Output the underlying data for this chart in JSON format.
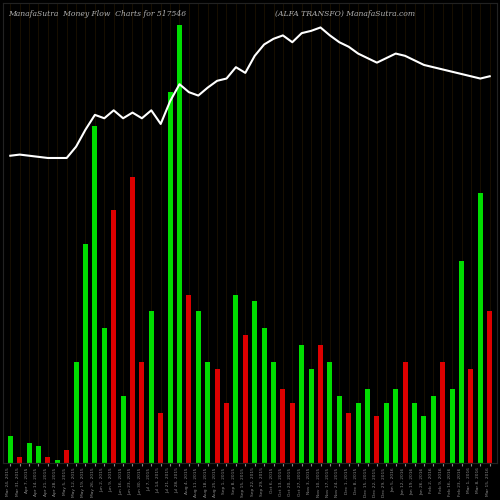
{
  "title_left": "ManafaSutra  Money Flow  Charts for 517546",
  "title_right": "(ALFA TRANSFO) ManafaSutra.com",
  "background_color": "#000000",
  "bar_colors_pattern": [
    "green",
    "red",
    "green",
    "green",
    "red",
    "green",
    "red",
    "green",
    "green",
    "green",
    "green",
    "red",
    "green",
    "red",
    "red",
    "green",
    "red",
    "green",
    "green",
    "red",
    "green",
    "green",
    "red",
    "red",
    "green",
    "red",
    "green",
    "green",
    "green",
    "red",
    "red",
    "green",
    "green",
    "red",
    "green",
    "green",
    "red",
    "green",
    "green",
    "red",
    "green",
    "green",
    "red",
    "green",
    "green",
    "green",
    "red",
    "green",
    "green",
    "red",
    "green",
    "red"
  ],
  "bar_heights": [
    8,
    2,
    6,
    5,
    2,
    1,
    4,
    30,
    65,
    100,
    40,
    75,
    20,
    85,
    30,
    45,
    15,
    110,
    130,
    50,
    45,
    30,
    28,
    18,
    50,
    38,
    48,
    40,
    30,
    22,
    18,
    35,
    28,
    35,
    30,
    20,
    15,
    18,
    22,
    14,
    18,
    22,
    30,
    18,
    14,
    20,
    30,
    22,
    60,
    28,
    80,
    45
  ],
  "line_values": [
    0.32,
    0.33,
    0.32,
    0.31,
    0.3,
    0.3,
    0.3,
    0.4,
    0.55,
    0.68,
    0.65,
    0.72,
    0.65,
    0.7,
    0.65,
    0.72,
    0.6,
    0.8,
    0.95,
    0.88,
    0.85,
    0.92,
    0.98,
    1.0,
    1.1,
    1.05,
    1.2,
    1.3,
    1.35,
    1.38,
    1.32,
    1.4,
    1.42,
    1.45,
    1.38,
    1.32,
    1.28,
    1.22,
    1.18,
    1.14,
    1.18,
    1.22,
    1.2,
    1.16,
    1.12,
    1.1,
    1.08,
    1.06,
    1.04,
    1.02,
    1.0,
    1.02
  ],
  "n_bars": 52,
  "xlabels": [
    "Mar 24, 2015",
    "Mar 31, 2015",
    "Apr 7, 2015",
    "Apr 14, 2015",
    "Apr 21, 2015",
    "Apr 28, 2015",
    "May 5, 2015",
    "May 12, 2015",
    "May 19, 2015",
    "May 26, 2015",
    "Jun 2, 2015",
    "Jun 9, 2015",
    "Jun 16, 2015",
    "Jun 23, 2015",
    "Jun 30, 2015",
    "Jul 7, 2015",
    "Jul 14, 2015",
    "Jul 21, 2015",
    "Jul 28, 2015",
    "Aug 4, 2015",
    "Aug 11, 2015",
    "Aug 18, 2015",
    "Aug 25, 2015",
    "Sep 1, 2015",
    "Sep 8, 2015",
    "Sep 15, 2015",
    "Sep 22, 2015",
    "Sep 29, 2015",
    "Oct 6, 2015",
    "Oct 13, 2015",
    "Oct 20, 2015",
    "Oct 27, 2015",
    "Nov 3, 2015",
    "Nov 10, 2015",
    "Nov 17, 2015",
    "Nov 24, 2015",
    "Dec 1, 2015",
    "Dec 8, 2015",
    "Dec 15, 2015",
    "Dec 22, 2015",
    "Dec 29, 2015",
    "Jan 5, 2016",
    "Jan 12, 2016",
    "Jan 19, 2016",
    "Jan 26, 2016",
    "Feb 2, 2016",
    "Feb 9, 2016",
    "Feb 16, 2016",
    "Feb 23, 2016",
    "Mar 1, 2016",
    "Mar 8, 2016",
    "Mar 15, 2016"
  ],
  "line_color": "#ffffff",
  "green_color": "#00dd00",
  "red_color": "#dd0000",
  "title_color": "#b0b0b0",
  "tick_color": "#888888",
  "grid_color": "#2a1a00"
}
